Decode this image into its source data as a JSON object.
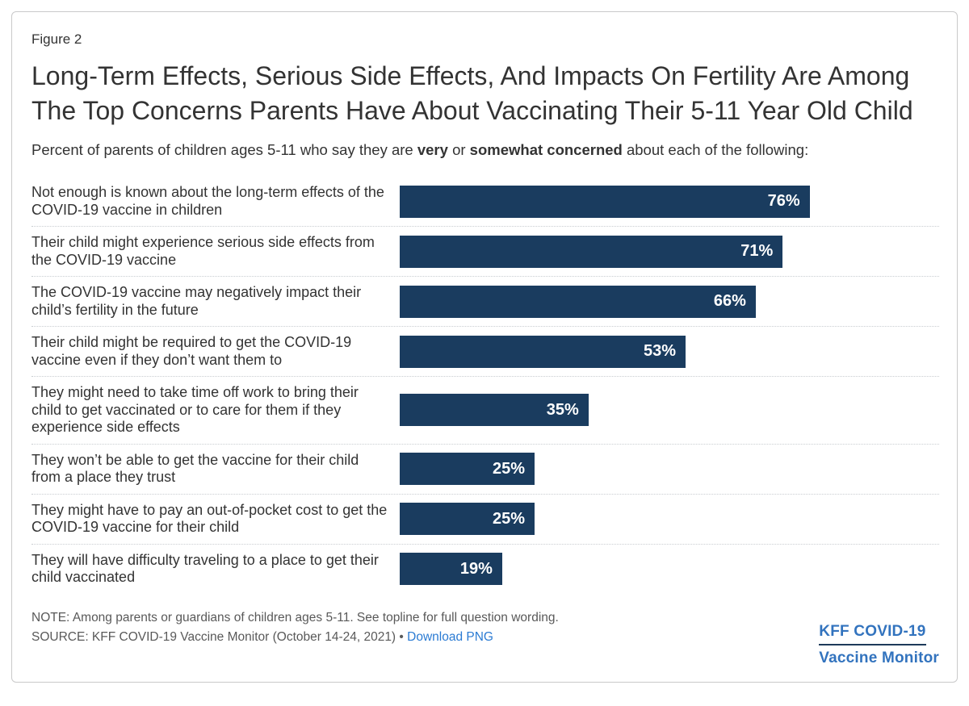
{
  "figure_label": "Figure 2",
  "title": "Long-Term Effects, Serious Side Effects, And Impacts On Fertility Are Among The Top Concerns Parents Have About Vaccinating Their 5-11 Year Old Child",
  "subtitle": {
    "prefix": "Percent of parents of children ages 5-11 who say they are ",
    "bold1": "very",
    "middle": " or ",
    "bold2": "somewhat concerned",
    "suffix": " about each of the following:"
  },
  "chart_data": {
    "type": "bar",
    "orientation": "horizontal",
    "categories": [
      "Not enough is known about the long-term effects of the COVID-19 vaccine in children",
      "Their child might experience serious side effects from the COVID-19 vaccine",
      "The COVID-19 vaccine may negatively impact their child’s fertility in the future",
      "Their child might be required to get the COVID-19 vaccine even if they don’t want them to",
      "They might need to take time off work to bring their child to get vaccinated or to care for them if they experience side effects",
      "They won’t be able to get the vaccine for their child from a place they trust",
      "They might have to pay an out-of-pocket cost to get the COVID-19 vaccine for their child",
      "They will have difficulty traveling to a place to get their child vaccinated"
    ],
    "values": [
      76,
      71,
      66,
      53,
      35,
      25,
      25,
      19
    ],
    "value_suffix": "%",
    "xlim": [
      0,
      100
    ],
    "bar_color": "#1a3c5f",
    "grid": false,
    "legend": false
  },
  "footer": {
    "note": "NOTE: Among parents or guardians of children ages 5-11. See topline for full question wording.",
    "source_prefix": "SOURCE: KFF COVID-19 Vaccine Monitor (October 14-24, 2021) • ",
    "download_link": "Download PNG"
  },
  "logo": {
    "line1": "KFF COVID-19",
    "line2": "Vaccine Monitor"
  },
  "colors": {
    "bar": "#1a3c5f",
    "text": "#333333",
    "muted_text": "#595959",
    "link": "#2b7bd3",
    "logo_blue": "#3273be",
    "logo_underline": "#1d3a5a",
    "card_border": "#c9c9ca",
    "separator": "#c9cdd1"
  }
}
